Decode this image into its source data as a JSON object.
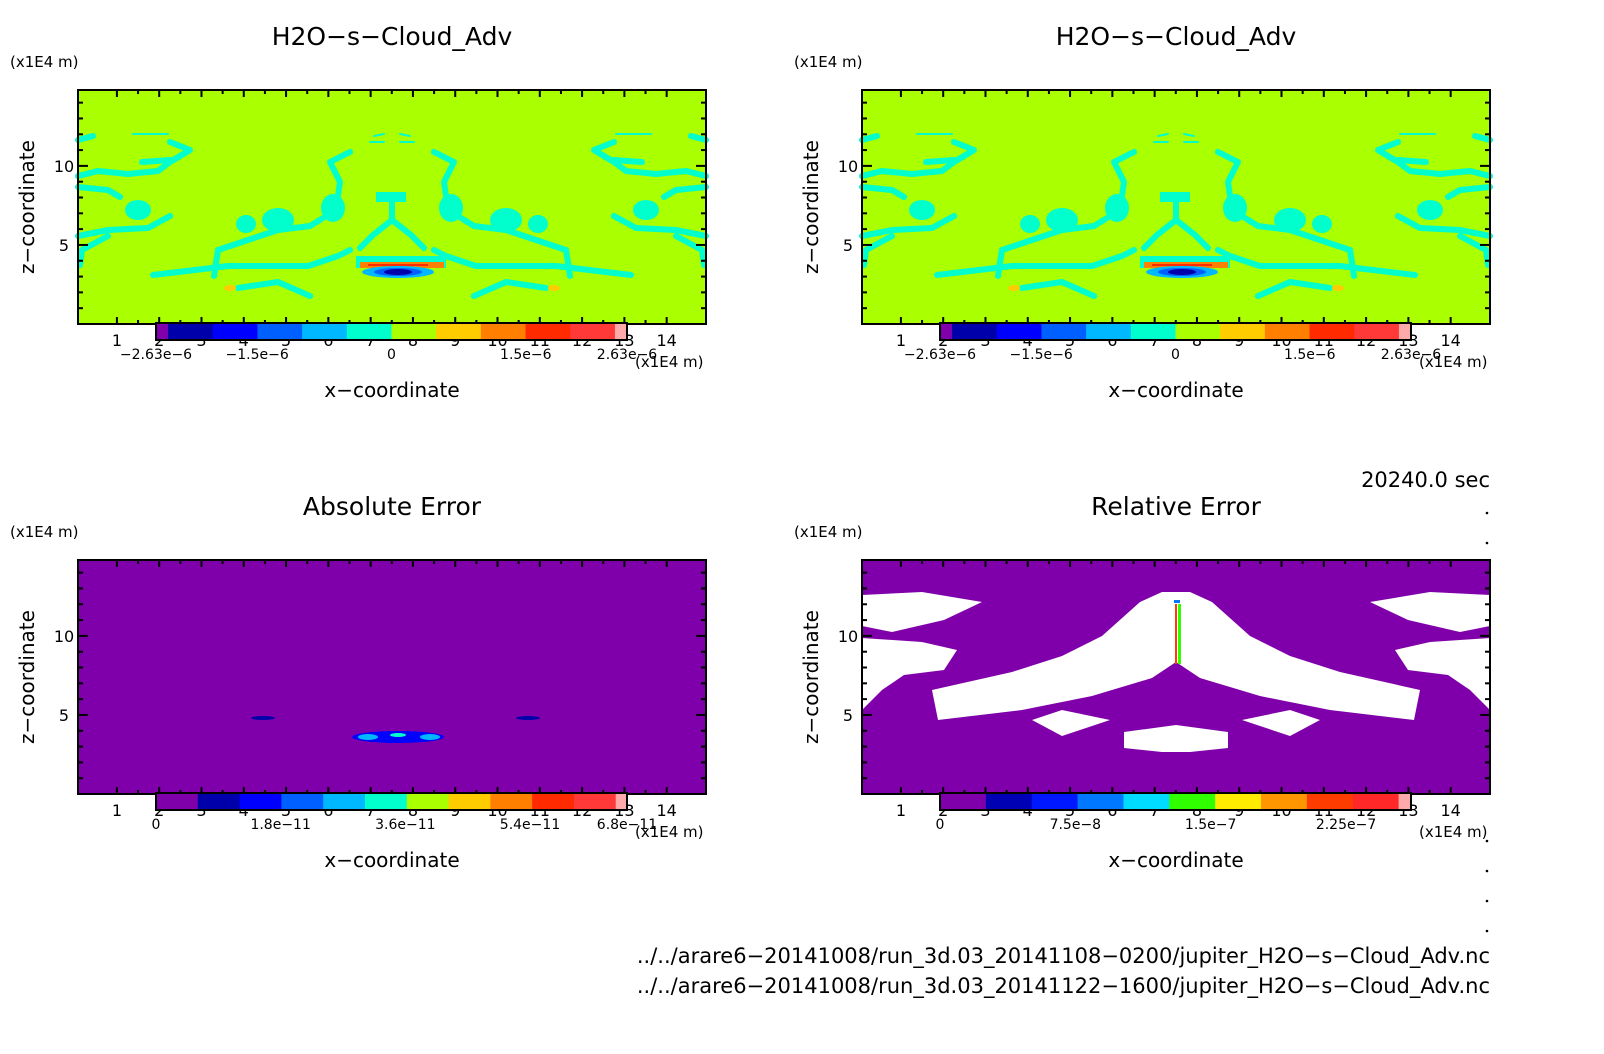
{
  "panels": [
    {
      "id": "h2o-a",
      "title": "H2O−s−Cloud_Adv",
      "zunit": "(x1E4 m)",
      "xunit": "(x1E4 m)",
      "ylabel": "z−coordinate",
      "xlabel": "x−coordinate",
      "background": "#aaff00",
      "colorbar": {
        "colors": [
          "#7f00aa",
          "#0000aa",
          "#0000ff",
          "#0060ff",
          "#00b8ff",
          "#00ffcc",
          "#aaff00",
          "#ffcc00",
          "#ff8000",
          "#ff2a00",
          "#ff3838",
          "#ffaaaa"
        ],
        "narrow": [
          "first",
          "last"
        ],
        "range": [
          -2.63e-06,
          2.63e-06
        ],
        "labels": [
          {
            "text": "−2.63e−6",
            "value": -2.63e-06
          },
          {
            "text": "−1.5e−6",
            "value": -1.5e-06
          },
          {
            "text": "0",
            "value": 0
          },
          {
            "text": "1.5e−6",
            "value": 1.5e-06
          },
          {
            "text": "2.63e−6",
            "value": 2.63e-06
          }
        ]
      }
    },
    {
      "id": "h2o-b",
      "title": "H2O−s−Cloud_Adv",
      "zunit": "(x1E4 m)",
      "xunit": "(x1E4 m)",
      "ylabel": "z−coordinate",
      "xlabel": "x−coordinate",
      "background": "#aaff00",
      "colorbar": {
        "colors": [
          "#7f00aa",
          "#0000aa",
          "#0000ff",
          "#0060ff",
          "#00b8ff",
          "#00ffcc",
          "#aaff00",
          "#ffcc00",
          "#ff8000",
          "#ff2a00",
          "#ff3838",
          "#ffaaaa"
        ],
        "narrow": [
          "first",
          "last"
        ],
        "range": [
          -2.63e-06,
          2.63e-06
        ],
        "labels": [
          {
            "text": "−2.63e−6",
            "value": -2.63e-06
          },
          {
            "text": "−1.5e−6",
            "value": -1.5e-06
          },
          {
            "text": "0",
            "value": 0
          },
          {
            "text": "1.5e−6",
            "value": 1.5e-06
          },
          {
            "text": "2.63e−6",
            "value": 2.63e-06
          }
        ]
      }
    },
    {
      "id": "abs",
      "title": "Absolute Error",
      "zunit": "(x1E4 m)",
      "xunit": "(x1E4 m)",
      "ylabel": "z−coordinate",
      "xlabel": "x−coordinate",
      "background": "#7f00aa",
      "colorbar": {
        "colors": [
          "#7f00aa",
          "#0000aa",
          "#0000ff",
          "#0060ff",
          "#00b8ff",
          "#00ffcc",
          "#aaff00",
          "#ffcc00",
          "#ff8000",
          "#ff2a00",
          "#ff3838",
          "#ffaaaa"
        ],
        "narrow": [
          "last"
        ],
        "range": [
          0,
          6.8e-11
        ],
        "labels": [
          {
            "text": "0",
            "value": 0
          },
          {
            "text": "1.8e−11",
            "value": 1.8e-11
          },
          {
            "text": "3.6e−11",
            "value": 3.6e-11
          },
          {
            "text": "5.4e−11",
            "value": 5.4e-11
          },
          {
            "text": "6.8e−11",
            "value": 6.8e-11
          }
        ]
      }
    },
    {
      "id": "rel",
      "title": "Relative Error",
      "zunit": "(x1E4 m)",
      "xunit": "(x1E4 m)",
      "ylabel": "z−coordinate",
      "xlabel": "x−coordinate",
      "background": "#7f00aa",
      "colorbar": {
        "colors": [
          "#7f00aa",
          "#0000b4",
          "#0018ff",
          "#0078ff",
          "#00dcff",
          "#30ff00",
          "#ffec00",
          "#ff9600",
          "#ff3c00",
          "#ff2828",
          "#ffaaaa"
        ],
        "narrow": [
          "last"
        ],
        "range": [
          0,
          2.61e-07
        ],
        "labels": [
          {
            "text": "0",
            "value": 0
          },
          {
            "text": "7.5e−8",
            "value": 7.5e-08
          },
          {
            "text": "1.5e−7",
            "value": 1.5e-07
          },
          {
            "text": "2.25e−7",
            "value": 2.25e-07
          }
        ]
      }
    }
  ],
  "axes": {
    "x_ticks": [
      "1",
      "2",
      "3",
      "4",
      "5",
      "6",
      "7",
      "8",
      "9",
      "10",
      "11",
      "12",
      "13",
      "14"
    ],
    "x_values": [
      1,
      2,
      3,
      4,
      5,
      6,
      7,
      8,
      9,
      10,
      11,
      12,
      13,
      14
    ],
    "x_range": [
      0.08,
      14.93
    ],
    "z_ticks": [
      "5",
      "10"
    ],
    "z_values": [
      5,
      10
    ],
    "z_range": [
      0,
      14.8
    ]
  },
  "time_label": "20240.0 sec",
  "files": [
    "../../arare6−20141008/run_3d.03_20141108−0200/jupiter_H2O−s−Cloud_Adv.nc",
    "../../arare6−20141008/run_3d.03_20141122−1600/jupiter_H2O−s−Cloud_Adv.nc"
  ],
  "chart_data": [
    {
      "type": "heatmap",
      "title": "H2O−s−Cloud_Adv",
      "xlabel": "x−coordinate (x1E4 m)",
      "ylabel": "z−coordinate (x1E4 m)",
      "xlim": [
        0,
        14.85
      ],
      "ylim": [
        0,
        14.8
      ],
      "clim": [
        -2.63e-06,
        2.63e-06
      ]
    },
    {
      "type": "heatmap",
      "title": "H2O−s−Cloud_Adv",
      "xlabel": "x−coordinate (x1E4 m)",
      "ylabel": "z−coordinate (x1E4 m)",
      "xlim": [
        0,
        14.85
      ],
      "ylim": [
        0,
        14.8
      ],
      "clim": [
        -2.63e-06,
        2.63e-06
      ]
    },
    {
      "type": "heatmap",
      "title": "Absolute Error",
      "xlabel": "x−coordinate (x1E4 m)",
      "ylabel": "z−coordinate (x1E4 m)",
      "xlim": [
        0,
        14.85
      ],
      "ylim": [
        0,
        14.8
      ],
      "clim": [
        0,
        6.8e-11
      ]
    },
    {
      "type": "heatmap",
      "title": "Relative Error",
      "xlabel": "x−coordinate (x1E4 m)",
      "ylabel": "z−coordinate (x1E4 m)",
      "xlim": [
        0,
        14.85
      ],
      "ylim": [
        0,
        14.8
      ],
      "clim": [
        0,
        2.61e-07
      ]
    }
  ]
}
